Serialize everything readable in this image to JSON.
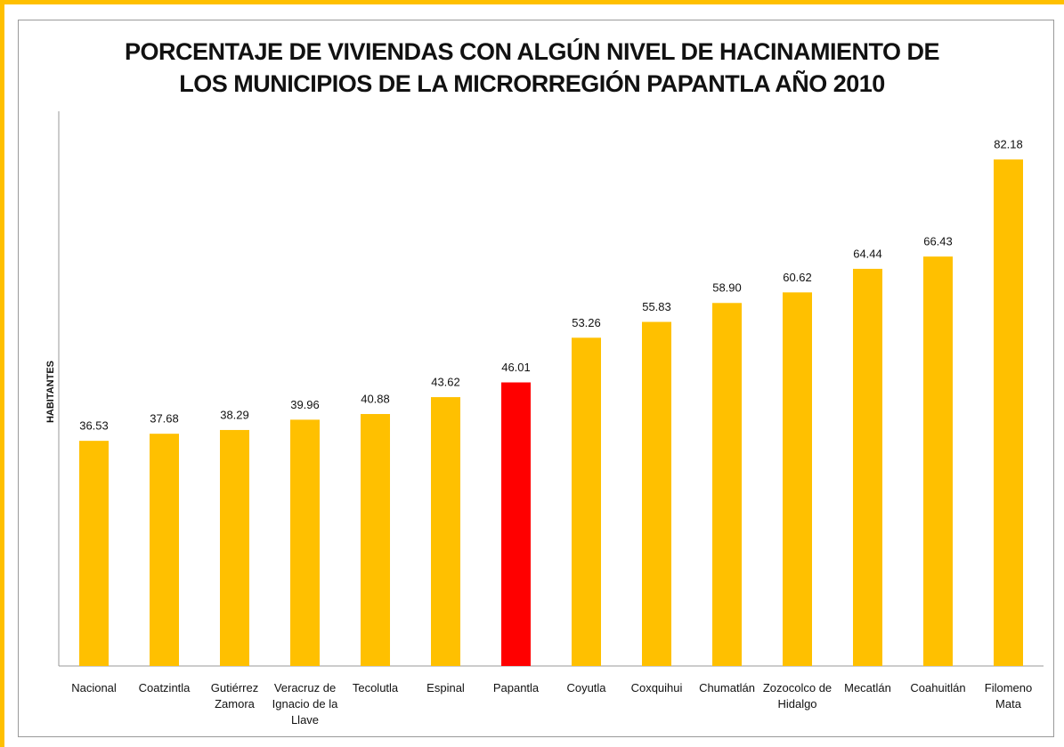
{
  "chart_data": {
    "type": "bar",
    "title": "PORCENTAJE DE VIVIENDAS CON ALGÚN NIVEL DE HACINAMIENTO DE\nLOS MUNICIPIOS DE LA MICRORREGIÓN PAPANTLA AÑO 2010",
    "y_label": "HABITANTES",
    "categories": [
      "Nacional",
      "Coatzintla",
      "Gutiérrez Zamora",
      "Veracruz de Ignacio de la Llave",
      "Tecolutla",
      "Espinal",
      "Papantla",
      "Coyutla",
      "Coxquihui",
      "Chumatlán",
      "Zozocolco de Hidalgo",
      "Mecatlán",
      "Coahuitlán",
      "Filomeno Mata"
    ],
    "values": [
      36.53,
      37.68,
      38.29,
      39.96,
      40.88,
      43.62,
      46.01,
      53.26,
      55.83,
      58.9,
      60.62,
      64.44,
      66.43,
      82.18
    ],
    "value_labels": [
      "36.53",
      "37.68",
      "38.29",
      "39.96",
      "40.88",
      "43.62",
      "46.01",
      "53.26",
      "55.83",
      "58.90",
      "60.62",
      "64.44",
      "66.43",
      "82.18"
    ],
    "colors": [
      "#FFC000",
      "#FFC000",
      "#FFC000",
      "#FFC000",
      "#FFC000",
      "#FFC000",
      "#FF0000",
      "#FFC000",
      "#FFC000",
      "#FFC000",
      "#FFC000",
      "#FFC000",
      "#FFC000",
      "#FFC000"
    ],
    "ylim": [
      0,
      90
    ]
  }
}
